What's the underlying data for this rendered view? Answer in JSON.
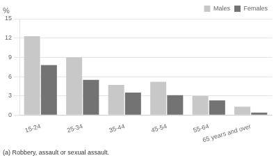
{
  "chart_data": {
    "type": "bar",
    "categories": [
      "15-24",
      "25-34",
      "35-44",
      "45-54",
      "55-64",
      "65 years and over"
    ],
    "series": [
      {
        "name": "Males",
        "color": "#c8c8c8",
        "values": [
          12.3,
          9.0,
          4.7,
          5.2,
          3.0,
          1.3
        ]
      },
      {
        "name": "Females",
        "color": "#737373",
        "values": [
          7.8,
          5.5,
          3.5,
          3.1,
          2.3,
          0.4
        ]
      }
    ],
    "ylabel": "%",
    "ylim": [
      0,
      15
    ],
    "yticks": [
      0,
      3,
      6,
      9,
      12,
      15
    ],
    "grid": true,
    "legend": "upper right",
    "annotation": "(a) Robbery, assault or sexual assault."
  }
}
